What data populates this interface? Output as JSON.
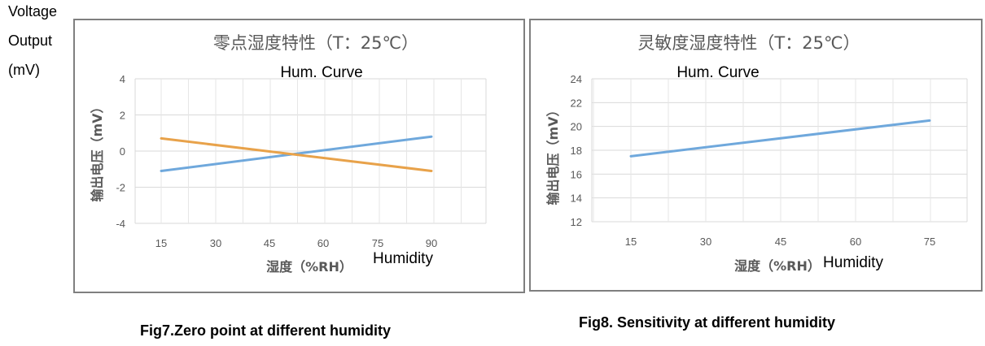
{
  "side_labels": [
    "Voltage",
    "Output",
    "(mV)"
  ],
  "chart_data": [
    {
      "type": "line",
      "title": "零点湿度特性（T：25℃）",
      "overlay_title": "Hum. Curve",
      "xlabel": "湿度（%RH）",
      "xlabel_overlay": "Humidity",
      "ylabel": "输出电压（mV）",
      "x": [
        15,
        90
      ],
      "xticks": [
        15,
        30,
        45,
        60,
        75,
        90
      ],
      "ylim": [
        -4,
        4
      ],
      "yticks": [
        -4,
        -2,
        0,
        2,
        4
      ],
      "grid": true,
      "series": [
        {
          "values": [
            -1.1,
            0.8
          ],
          "color": "#6fa8dc"
        },
        {
          "values": [
            0.7,
            -1.1
          ],
          "color": "#e8a24a"
        }
      ],
      "caption": "Fig7.Zero point at different humidity"
    },
    {
      "type": "line",
      "title": "灵敏度湿度特性（T：25℃）",
      "overlay_title": "Hum. Curve",
      "xlabel": "湿度（%RH）",
      "xlabel_overlay": "Humidity",
      "ylabel": "输出电压（mV）",
      "x": [
        15,
        75
      ],
      "xticks": [
        15,
        30,
        45,
        60,
        75
      ],
      "ylim": [
        12,
        24
      ],
      "yticks": [
        12,
        14,
        16,
        18,
        20,
        22,
        24
      ],
      "grid": true,
      "series": [
        {
          "values": [
            17.5,
            20.5
          ],
          "color": "#6fa8dc"
        }
      ],
      "caption": "Fig8. Sensitivity at different humidity"
    }
  ]
}
